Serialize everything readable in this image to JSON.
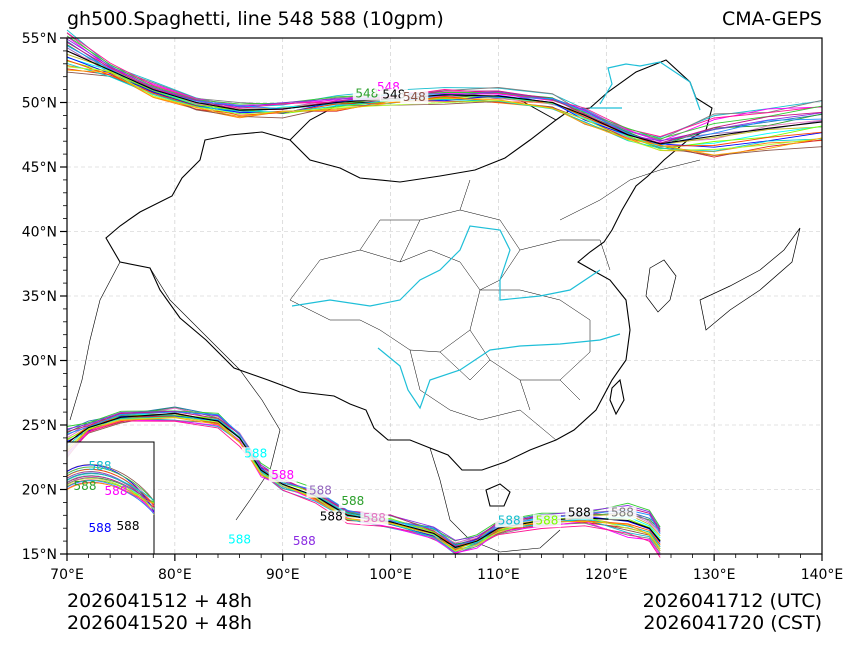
{
  "title": {
    "left": "gh500.Spaghetti, line 548 588 (10gpm)",
    "right": "CMA-GEPS"
  },
  "footer": {
    "init_line_1": "2026041512 + 48h",
    "init_line_2": "2026041520 + 48h",
    "valid_line_1": "2026041712 (UTC)",
    "valid_line_2": "2026041720 (CST)"
  },
  "map": {
    "lon_range": [
      70,
      140
    ],
    "lat_range": [
      15,
      55
    ],
    "lon_ticks": [
      "70°E",
      "80°E",
      "90°E",
      "100°E",
      "110°E",
      "120°E",
      "130°E",
      "140°E"
    ],
    "lat_ticks": [
      "15°N",
      "20°N",
      "25°N",
      "30°N",
      "35°N",
      "40°N",
      "45°N",
      "50°N",
      "55°N"
    ],
    "contour_levels": [
      "548",
      "588"
    ],
    "member_colors": [
      "#1f77b4",
      "#ff7f0e",
      "#2ca02c",
      "#d62728",
      "#9467bd",
      "#8c564b",
      "#e377c2",
      "#17becf",
      "#bcbd22",
      "#7f7f7f",
      "#00ffff",
      "#ff00ff",
      "#7fff00",
      "#ff1493",
      "#0000ff",
      "#32cd32",
      "#ff4500",
      "#8a2be2",
      "#00ced1",
      "#c71585",
      "#adff2f",
      "#1e90ff",
      "#ffa500"
    ],
    "control_color": "#000000",
    "river_color": "#1fbfd8"
  }
}
